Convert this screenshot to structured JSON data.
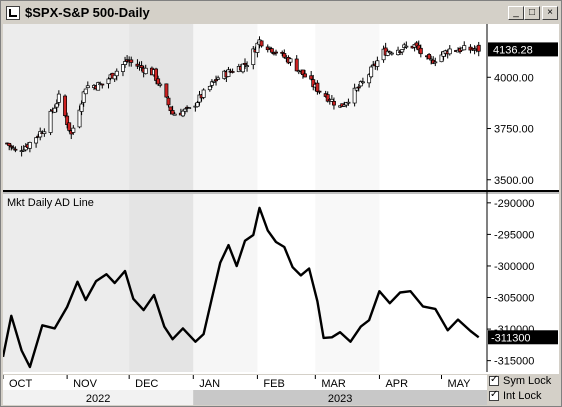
{
  "window": {
    "title": "$SPX-S&P 500-Daily",
    "minimize_label": "_",
    "maximize_label": "□",
    "close_label": "×"
  },
  "price_panel": {
    "current_value_label": "4136.28",
    "ticks": [
      "4000.00",
      "3750.00",
      "3500.00"
    ],
    "up_color": "#ffffff",
    "down_color": "#cc2222"
  },
  "ad_panel": {
    "title": "Mkt Daily AD Line",
    "current_value_label": "-311300",
    "ticks": [
      "-290000",
      "-295000",
      "-300000",
      "-305000",
      "-310000",
      "-315000"
    ]
  },
  "x_axis": {
    "months": [
      "OCT",
      "NOV",
      "DEC",
      "JAN",
      "FEB",
      "MAR",
      "APR",
      "MAY"
    ],
    "years": [
      "2022",
      "2023"
    ]
  },
  "options": {
    "sym_lock": {
      "label": "Sym Lock",
      "checked": true
    },
    "int_lock": {
      "label": "Int Lock",
      "checked": true
    }
  },
  "chart_data": [
    {
      "type": "candlestick",
      "title": "$SPX-S&P 500-Daily",
      "ylim": [
        3450,
        4260
      ],
      "x_range": [
        "2022-10-01",
        "2023-05-23"
      ],
      "series": [
        {
          "date": "2022-10-03",
          "close": 3678
        },
        {
          "date": "2022-10-07",
          "close": 3640
        },
        {
          "date": "2022-10-13",
          "close": 3670
        },
        {
          "date": "2022-10-21",
          "close": 3752
        },
        {
          "date": "2022-10-28",
          "close": 3901
        },
        {
          "date": "2022-11-03",
          "close": 3720
        },
        {
          "date": "2022-11-10",
          "close": 3956
        },
        {
          "date": "2022-11-18",
          "close": 3965
        },
        {
          "date": "2022-11-30",
          "close": 4080
        },
        {
          "date": "2022-12-13",
          "close": 4019
        },
        {
          "date": "2022-12-22",
          "close": 3822
        },
        {
          "date": "2022-12-30",
          "close": 3840
        },
        {
          "date": "2023-01-13",
          "close": 3999
        },
        {
          "date": "2023-01-27",
          "close": 4070
        },
        {
          "date": "2023-02-02",
          "close": 4179
        },
        {
          "date": "2023-02-17",
          "close": 4079
        },
        {
          "date": "2023-03-01",
          "close": 3951
        },
        {
          "date": "2023-03-13",
          "close": 3855
        },
        {
          "date": "2023-03-24",
          "close": 3971
        },
        {
          "date": "2023-04-03",
          "close": 4124
        },
        {
          "date": "2023-04-18",
          "close": 4155
        },
        {
          "date": "2023-04-25",
          "close": 4071
        },
        {
          "date": "2023-05-05",
          "close": 4136
        },
        {
          "date": "2023-05-19",
          "close": 4136
        }
      ]
    },
    {
      "type": "line",
      "title": "Mkt Daily AD Line",
      "ylim": [
        -316800,
        -288600
      ],
      "x_range": [
        "2022-10-01",
        "2023-05-23"
      ],
      "x": [
        "2022-10-01",
        "2022-10-05",
        "2022-10-10",
        "2022-10-14",
        "2022-10-20",
        "2022-10-26",
        "2022-11-01",
        "2022-11-06",
        "2022-11-10",
        "2022-11-15",
        "2022-11-20",
        "2022-11-24",
        "2022-11-29",
        "2022-12-03",
        "2022-12-08",
        "2022-12-13",
        "2022-12-18",
        "2022-12-22",
        "2022-12-27",
        "2023-01-02",
        "2023-01-06",
        "2023-01-10",
        "2023-01-14",
        "2023-01-18",
        "2023-01-22",
        "2023-01-26",
        "2023-01-30",
        "2023-02-02",
        "2023-02-06",
        "2023-02-10",
        "2023-02-14",
        "2023-02-18",
        "2023-02-22",
        "2023-02-26",
        "2023-03-02",
        "2023-03-05",
        "2023-03-09",
        "2023-03-13",
        "2023-03-18",
        "2023-03-23",
        "2023-03-27",
        "2023-04-01",
        "2023-04-06",
        "2023-04-11",
        "2023-04-16",
        "2023-04-22",
        "2023-04-28",
        "2023-05-04",
        "2023-05-09",
        "2023-05-15",
        "2023-05-19"
      ],
      "y": [
        -314400,
        -307900,
        -313400,
        -316000,
        -309400,
        -309900,
        -306500,
        -302500,
        -305400,
        -302400,
        -301300,
        -302700,
        -300800,
        -305200,
        -307000,
        -304600,
        -309600,
        -311600,
        -309900,
        -312000,
        -310800,
        -305100,
        -299500,
        -296700,
        -300000,
        -296000,
        -295100,
        -290800,
        -294400,
        -296200,
        -297000,
        -300200,
        -301500,
        -300400,
        -305600,
        -311400,
        -311300,
        -310500,
        -312000,
        -309600,
        -308600,
        -304000,
        -305900,
        -304200,
        -304000,
        -306400,
        -306800,
        -310200,
        -308500,
        -310300,
        -311300
      ]
    }
  ]
}
